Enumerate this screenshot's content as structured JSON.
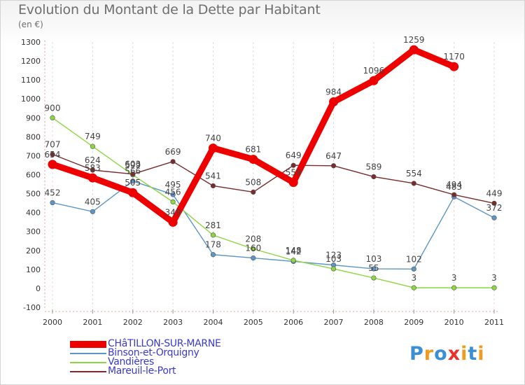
{
  "header": {
    "title": "Evolution du Montant de la Dette par Habitant",
    "subtitle": "(en €)"
  },
  "logo": {
    "letters": [
      "P",
      "r",
      "o",
      "x",
      "i",
      "t",
      "i"
    ],
    "colors": [
      "#3b8fd4",
      "#f29a1f",
      "#3b8fd4",
      "#e8322a",
      "#f29a1f",
      "#3b8fd4",
      "#f29a1f"
    ]
  },
  "chart_data": {
    "type": "line",
    "title": "Evolution du Montant de la Dette par Habitant",
    "subtitle": "(en €)",
    "xlabel": "",
    "ylabel": "",
    "x": [
      "2000",
      "2001",
      "2002",
      "2003",
      "2004",
      "2005",
      "2006",
      "2007",
      "2008",
      "2009",
      "2010",
      "2011"
    ],
    "ylim": [
      -100,
      1300
    ],
    "yticks": [
      -100,
      0,
      100,
      200,
      300,
      400,
      500,
      600,
      700,
      800,
      900,
      1000,
      1100,
      1200,
      1300
    ],
    "grid": "vertical",
    "legend_position": "bottom-left",
    "series": [
      {
        "name": "CHâTILLON-SUR-MARNE",
        "color": "#ee0000",
        "values": [
          654,
          583,
          505,
          349,
          740,
          681,
          559,
          984,
          1096,
          1259,
          1170,
          null
        ],
        "labels": [
          "654",
          "583",
          "505",
          "349",
          "740",
          "681",
          "559",
          "984",
          "1096",
          "1259",
          "1170",
          ""
        ]
      },
      {
        "name": "Binson-et-Orquigny",
        "color": "#5b96c8",
        "values": [
          452,
          405,
          566,
          495,
          178,
          160,
          142,
          123,
          103,
          102,
          483,
          372
        ],
        "labels": [
          "452",
          "405",
          "566",
          "495",
          "178",
          "160",
          "142",
          "123",
          "103",
          "102",
          "483",
          "372"
        ]
      },
      {
        "name": "Vandières",
        "color": "#8cd640",
        "values": [
          900,
          749,
          599,
          456,
          281,
          208,
          148,
          103,
          55,
          3,
          3,
          3
        ],
        "labels": [
          "900",
          "749",
          "599",
          "456",
          "281",
          "208",
          "148",
          "103",
          "55",
          "3",
          "3",
          "3"
        ]
      },
      {
        "name": "Mareuil-le-Port",
        "color": "#7a2c2c",
        "values": [
          707,
          624,
          603,
          669,
          541,
          508,
          649,
          647,
          589,
          554,
          494,
          449
        ],
        "labels": [
          "707",
          "624",
          "603",
          "669",
          "541",
          "508",
          "649",
          "647",
          "589",
          "554",
          "494",
          "449"
        ]
      }
    ]
  }
}
